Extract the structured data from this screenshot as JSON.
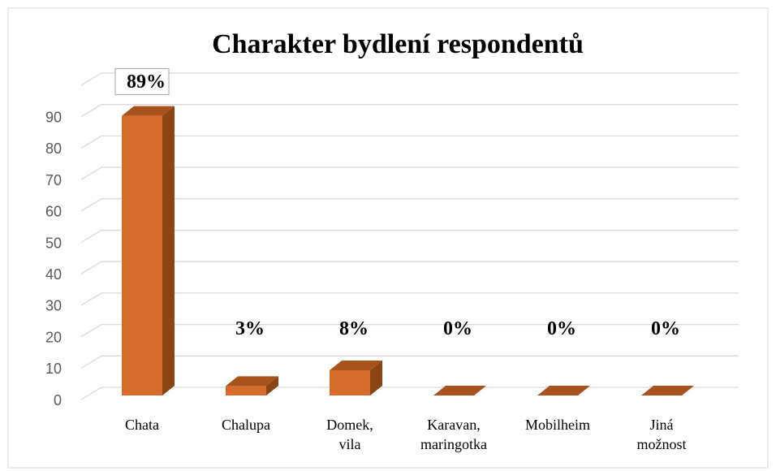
{
  "chart_data": {
    "type": "bar3d",
    "title": "Charakter bydlení respondentů",
    "categories": [
      "Chata",
      "Chalupa",
      "Domek, vila",
      "Karavan, maringotka",
      "Mobilheim",
      "Jiná možnost"
    ],
    "values": [
      89,
      3,
      8,
      0,
      0,
      0
    ],
    "value_labels": [
      "89%",
      "3%",
      "8%",
      "0%",
      "0%",
      "0%"
    ],
    "color": "#d46b2a",
    "ylim": [
      0,
      100
    ],
    "yticks": [
      0,
      10,
      20,
      30,
      40,
      50,
      60,
      70,
      80,
      90
    ],
    "grid": true
  }
}
